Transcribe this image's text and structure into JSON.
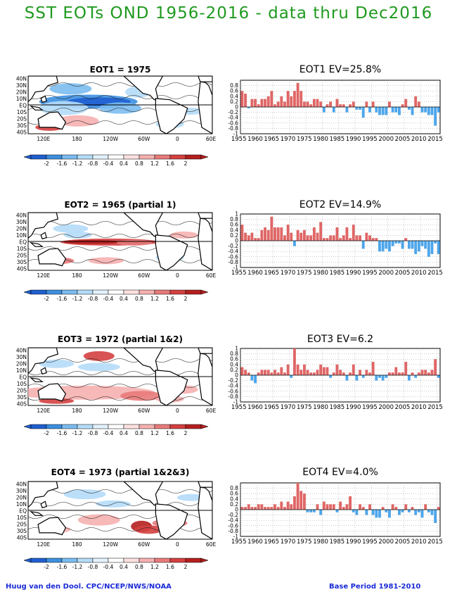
{
  "page": {
    "title": "SST EOTs OND 1956-2016 - data thru Dec2016",
    "footer_left": "Huug van den Dool. CPC/NCEP/NWS/NOAA",
    "footer_right": "Base Period 1981-2010"
  },
  "colors": {
    "title": "#1f9a1f",
    "footer": "#1a2bd6",
    "positive_bar": "#e06666",
    "negative_bar": "#4da6ec",
    "colorbar": [
      "#1f5fd0",
      "#3d8fe0",
      "#7bbcf0",
      "#b5dcf8",
      "#e3f2fd",
      "#ffffff",
      "#fde0e0",
      "#f6b0b0",
      "#e87a7a",
      "#d44040",
      "#b51f1f"
    ]
  },
  "map_axes": {
    "lat_labels": [
      "40N",
      "30N",
      "20N",
      "10N",
      "EQ",
      "10S",
      "20S",
      "30S",
      "40S"
    ],
    "lon_labels": [
      "120E",
      "180",
      "120W",
      "60W",
      "0",
      "60E"
    ],
    "colorbar_ticks": [
      "-2",
      "-1.6",
      "-1.2",
      "-0.8",
      "-0.4",
      "0.4",
      "0.8",
      "1.2",
      "1.6",
      "2"
    ]
  },
  "panels": [
    {
      "map_title": "EOT1     = 1975",
      "bar_title": "EOT1  EV=25.8%"
    },
    {
      "map_title": "EOT2    = 1965 (partial 1)",
      "bar_title": "EOT2  EV=14.9%"
    },
    {
      "map_title": "EOT3    = 1972 (partial 1&2)",
      "bar_title": "EOT3  EV=6.2"
    },
    {
      "map_title": "EOT4    = 1973 (partial 1&2&3)",
      "bar_title": "EOT4  EV=4.0%"
    }
  ],
  "chart_data": [
    {
      "type": "bar",
      "title": "EOT1  EV=25.8%",
      "x": [
        1956,
        1957,
        1958,
        1959,
        1960,
        1961,
        1962,
        1963,
        1964,
        1965,
        1966,
        1967,
        1968,
        1969,
        1970,
        1971,
        1972,
        1973,
        1974,
        1975,
        1976,
        1977,
        1978,
        1979,
        1980,
        1981,
        1982,
        1983,
        1984,
        1985,
        1986,
        1987,
        1988,
        1989,
        1990,
        1991,
        1992,
        1993,
        1994,
        1995,
        1996,
        1997,
        1998,
        1999,
        2000,
        2001,
        2002,
        2003,
        2004,
        2005,
        2006,
        2007,
        2008,
        2009,
        2010,
        2011,
        2012,
        2013,
        2014,
        2015,
        2016
      ],
      "values": [
        0.6,
        0.5,
        -0.05,
        0.3,
        0.3,
        0.1,
        0.3,
        0.3,
        0.4,
        0.6,
        0.1,
        0.2,
        0.4,
        0.2,
        0.6,
        0.4,
        0.6,
        0.9,
        0.6,
        0.2,
        0.2,
        0.1,
        0.3,
        0.3,
        0.2,
        -0.2,
        0.1,
        0.2,
        -0.2,
        0.3,
        0.1,
        0.1,
        -0.2,
        0.1,
        0.2,
        -0.1,
        -0.1,
        -0.4,
        0.2,
        -0.2,
        0.2,
        -0.2,
        -0.3,
        -0.3,
        -0.3,
        0.2,
        -0.2,
        -0.2,
        -0.3,
        0.1,
        0.3,
        -0.1,
        -0.3,
        0.4,
        0.2,
        -0.2,
        -0.2,
        -0.3,
        -0.3,
        -0.7,
        -0.2
      ],
      "xticks": [
        "1955",
        "1960",
        "1965",
        "1970",
        "1975",
        "1980",
        "1985",
        "1990",
        "1995",
        "2000",
        "2005",
        "2010",
        "2015"
      ],
      "yticks": [
        "0.8",
        "0.6",
        "0.4",
        "0.2",
        "0",
        "-0.2",
        "-0.4",
        "-0.6",
        "-0.8",
        "-1"
      ],
      "ylim": [
        -1,
        1
      ]
    },
    {
      "type": "bar",
      "title": "EOT2  EV=14.9%",
      "x": [
        1956,
        1957,
        1958,
        1959,
        1960,
        1961,
        1962,
        1963,
        1964,
        1965,
        1966,
        1967,
        1968,
        1969,
        1970,
        1971,
        1972,
        1973,
        1974,
        1975,
        1976,
        1977,
        1978,
        1979,
        1980,
        1981,
        1982,
        1983,
        1984,
        1985,
        1986,
        1987,
        1988,
        1989,
        1990,
        1991,
        1992,
        1993,
        1994,
        1995,
        1996,
        1997,
        1998,
        1999,
        2000,
        2001,
        2002,
        2003,
        2004,
        2005,
        2006,
        2007,
        2008,
        2009,
        2010,
        2011,
        2012,
        2013,
        2014,
        2015,
        2016
      ],
      "values": [
        0.6,
        0.3,
        0.2,
        0.3,
        0.1,
        0.1,
        0.4,
        0.5,
        0.4,
        0.9,
        0.5,
        0.5,
        0.5,
        0.2,
        0.6,
        0.3,
        -0.2,
        0.4,
        0.3,
        0.4,
        0.2,
        0.2,
        0.5,
        0.3,
        0.7,
        0.1,
        0.1,
        0.2,
        0.2,
        0.5,
        0.1,
        0.2,
        0.5,
        0.1,
        0.6,
        0.2,
        0.2,
        -0.3,
        0.3,
        0.2,
        0.1,
        0.1,
        -0.4,
        -0.4,
        -0.3,
        -0.4,
        -0.2,
        -0.1,
        -0.1,
        -0.3,
        0.1,
        -0.3,
        -0.3,
        -0.5,
        -0.4,
        -0.2,
        -0.3,
        -0.6,
        -0.5,
        -0.1,
        -0.5
      ],
      "xticks": [
        "1955",
        "1960",
        "1965",
        "1970",
        "1975",
        "1980",
        "1985",
        "1990",
        "1995",
        "2000",
        "2005",
        "2010",
        "2015"
      ],
      "yticks": [
        "1",
        "0.8",
        "0.6",
        "0.4",
        "0.2",
        "0",
        "-0.2",
        "-0.4",
        "-0.6",
        "-0.8",
        "-1"
      ],
      "ylim": [
        -1,
        1
      ]
    },
    {
      "type": "bar",
      "title": "EOT3  EV=6.2",
      "x": [
        1956,
        1957,
        1958,
        1959,
        1960,
        1961,
        1962,
        1963,
        1964,
        1965,
        1966,
        1967,
        1968,
        1969,
        1970,
        1971,
        1972,
        1973,
        1974,
        1975,
        1976,
        1977,
        1978,
        1979,
        1980,
        1981,
        1982,
        1983,
        1984,
        1985,
        1986,
        1987,
        1988,
        1989,
        1990,
        1991,
        1992,
        1993,
        1994,
        1995,
        1996,
        1997,
        1998,
        1999,
        2000,
        2001,
        2002,
        2003,
        2004,
        2005,
        2006,
        2007,
        2008,
        2009,
        2010,
        2011,
        2012,
        2013,
        2014,
        2015,
        2016
      ],
      "values": [
        0.3,
        0.2,
        0.1,
        -0.2,
        -0.3,
        0.1,
        0.2,
        0.2,
        0.2,
        0.1,
        0.2,
        0.1,
        0.3,
        0.1,
        0.4,
        -0.1,
        1.0,
        0.4,
        0.2,
        0.4,
        0.2,
        0.1,
        0.1,
        0.2,
        0.4,
        0.3,
        0.3,
        -0.1,
        0.1,
        0.4,
        0.2,
        0.1,
        -0.2,
        0.1,
        0.4,
        -0.2,
        0.2,
        -0.1,
        0.2,
        0.1,
        0.5,
        -0.2,
        -0.1,
        -0.2,
        -0.1,
        0.1,
        0.1,
        0.3,
        0.1,
        0.1,
        0.5,
        -0.2,
        0.1,
        -0.1,
        0.1,
        0.2,
        0.2,
        0.1,
        0.2,
        0.6,
        -0.1
      ],
      "xticks": [
        "1955",
        "1960",
        "1965",
        "1970",
        "1975",
        "1980",
        "1985",
        "1990",
        "1995",
        "2000",
        "2005",
        "2010",
        "2015"
      ],
      "yticks": [
        "1",
        "0.8",
        "0.6",
        "0.4",
        "0.2",
        "0",
        "-0.2",
        "-0.4",
        "-0.6",
        "-0.8",
        "-1"
      ],
      "ylim": [
        -1,
        1
      ]
    },
    {
      "type": "bar",
      "title": "EOT4  EV=4.0%",
      "x": [
        1956,
        1957,
        1958,
        1959,
        1960,
        1961,
        1962,
        1963,
        1964,
        1965,
        1966,
        1967,
        1968,
        1969,
        1970,
        1971,
        1972,
        1973,
        1974,
        1975,
        1976,
        1977,
        1978,
        1979,
        1980,
        1981,
        1982,
        1983,
        1984,
        1985,
        1986,
        1987,
        1988,
        1989,
        1990,
        1991,
        1992,
        1993,
        1994,
        1995,
        1996,
        1997,
        1998,
        1999,
        2000,
        2001,
        2002,
        2003,
        2004,
        2005,
        2006,
        2007,
        2008,
        2009,
        2010,
        2011,
        2012,
        2013,
        2014,
        2015,
        2016
      ],
      "values": [
        0.1,
        0.1,
        0.2,
        0.1,
        0.1,
        0.2,
        0.2,
        0.1,
        0.1,
        0.1,
        0.2,
        0.1,
        0.3,
        0.1,
        0.3,
        0.2,
        0.5,
        1.0,
        0.7,
        0.6,
        -0.1,
        -0.1,
        -0.1,
        0.2,
        -0.2,
        0.3,
        0.2,
        0.2,
        0.2,
        -0.1,
        0.3,
        0.1,
        0.2,
        0.5,
        -0.1,
        -0.2,
        0.2,
        0.1,
        -0.2,
        0.2,
        -0.2,
        -0.3,
        -0.3,
        0.1,
        -0.1,
        -0.3,
        0.2,
        0.1,
        -0.2,
        -0.1,
        0.2,
        -0.1,
        0.1,
        -0.2,
        -0.1,
        -0.3,
        0.2,
        -0.1,
        -0.2,
        -0.5,
        0.1
      ],
      "xticks": [
        "1955",
        "1960",
        "1965",
        "1970",
        "1975",
        "1980",
        "1985",
        "1990",
        "1995",
        "2000",
        "2005",
        "2010",
        "2015"
      ],
      "yticks": [
        "0.8",
        "0.6",
        "0.4",
        "0.2",
        "0",
        "-0.2",
        "-0.4",
        "-0.6",
        "-0.8",
        "-1"
      ],
      "ylim": [
        -1,
        1
      ]
    }
  ]
}
